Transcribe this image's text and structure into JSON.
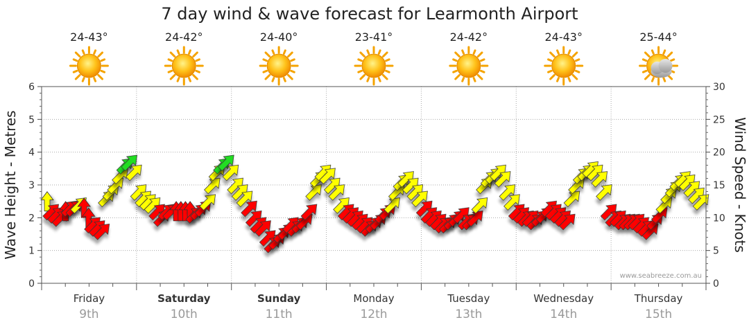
{
  "chart_data": {
    "type": "line",
    "title": "7 day wind & wave forecast for Learmonth Airport",
    "ylabel_left": "Wave Height - Metres",
    "ylabel_right": "Wind Speed - Knots",
    "y_left_range": [
      0,
      6
    ],
    "y_right_range": [
      0,
      30
    ],
    "y_left_ticks": [
      "0",
      "1",
      "2",
      "3",
      "4",
      "5",
      "6"
    ],
    "y_right_ticks": [
      "0",
      "5",
      "10",
      "15",
      "20",
      "25",
      "30"
    ],
    "watermark": "www.seabreeze.com.au",
    "days": [
      {
        "name": "Friday",
        "date": "9th",
        "temp": "24-43°",
        "weather": "sunny",
        "bold": false
      },
      {
        "name": "Saturday",
        "date": "10th",
        "temp": "24-42°",
        "weather": "sunny",
        "bold": true
      },
      {
        "name": "Sunday",
        "date": "11th",
        "temp": "24-40°",
        "weather": "sunny",
        "bold": true
      },
      {
        "name": "Monday",
        "date": "12th",
        "temp": "23-41°",
        "weather": "sunny",
        "bold": false
      },
      {
        "name": "Tuesday",
        "date": "13th",
        "temp": "24-42°",
        "weather": "sunny",
        "bold": false
      },
      {
        "name": "Wednesday",
        "date": "14th",
        "temp": "24-43°",
        "weather": "sunny",
        "bold": false
      },
      {
        "name": "Thursday",
        "date": "15th",
        "temp": "25-44°",
        "weather": "partly-cloudy",
        "bold": false
      }
    ],
    "wind_colors": {
      "light": "#ff0000",
      "moderate": "#ffff00",
      "strong": "#22dd22"
    },
    "wind_thresholds_knots": [
      12,
      18
    ],
    "wind_speed_knots": [
      12.5,
      11,
      10.5,
      10,
      11,
      11.5,
      11.5,
      12,
      11.5,
      10,
      9,
      8.5,
      8,
      13,
      14,
      15,
      16.5,
      18,
      18.5,
      17,
      14,
      13,
      12.5,
      12,
      11,
      10,
      11,
      11,
      11,
      11,
      11,
      11,
      10.5,
      11,
      11.5,
      12.5,
      15,
      17,
      18,
      18.5,
      17,
      15,
      14,
      13,
      11.5,
      10,
      9,
      8.5,
      7,
      6,
      6.5,
      7.5,
      8,
      9,
      8.5,
      9,
      9.5,
      11,
      14,
      16,
      17,
      16.5,
      15,
      14,
      12,
      11,
      10.5,
      10,
      9.5,
      9,
      8.5,
      9,
      9.5,
      10.5,
      11,
      12,
      14,
      15.5,
      16,
      15,
      14,
      13,
      11.5,
      10.5,
      10,
      9.5,
      9,
      9,
      9.5,
      10,
      10.5,
      9.5,
      9.5,
      10,
      12,
      15,
      16,
      16.5,
      17,
      16,
      14,
      12.5,
      11,
      10.5,
      10,
      10,
      9.5,
      10,
      10.5,
      11.5,
      11,
      10.5,
      10,
      9.5,
      13,
      15,
      16.5,
      17,
      17.5,
      17,
      16,
      14,
      11,
      10,
      10,
      9.5,
      9.5,
      9.5,
      9.5,
      9,
      8.5,
      8,
      9.5,
      10.5,
      12,
      13.5,
      14.5,
      15.5,
      16,
      15.5,
      14.5,
      13.5,
      12.5
    ],
    "wind_direction_deg": [
      0,
      45,
      45,
      45,
      0,
      45,
      45,
      45,
      0,
      0,
      45,
      45,
      45,
      45,
      45,
      45,
      45,
      45,
      45,
      45,
      45,
      45,
      45,
      45,
      45,
      45,
      45,
      45,
      0,
      0,
      0,
      0,
      45,
      45,
      45,
      45,
      45,
      45,
      45,
      45,
      45,
      45,
      45,
      45,
      45,
      45,
      45,
      45,
      45,
      45,
      45,
      45,
      45,
      45,
      45,
      45,
      45,
      45,
      45,
      45,
      45,
      45,
      45,
      45,
      45,
      45,
      45,
      45,
      45,
      45,
      45,
      45,
      45,
      45,
      45,
      45,
      45,
      45,
      45,
      45,
      45,
      45,
      45,
      45,
      45,
      45,
      45,
      45,
      45,
      45,
      45,
      45,
      45,
      45,
      45,
      45,
      45,
      45,
      45,
      45,
      45,
      45,
      45,
      45,
      45,
      45,
      45,
      45,
      45,
      45,
      45,
      45,
      45,
      45,
      45,
      45,
      45,
      45,
      45,
      45,
      45,
      45,
      45,
      45,
      45,
      45,
      45,
      45,
      45,
      45,
      45,
      45,
      45,
      45,
      45,
      45,
      45,
      45,
      45,
      45,
      45,
      45,
      45
    ]
  }
}
